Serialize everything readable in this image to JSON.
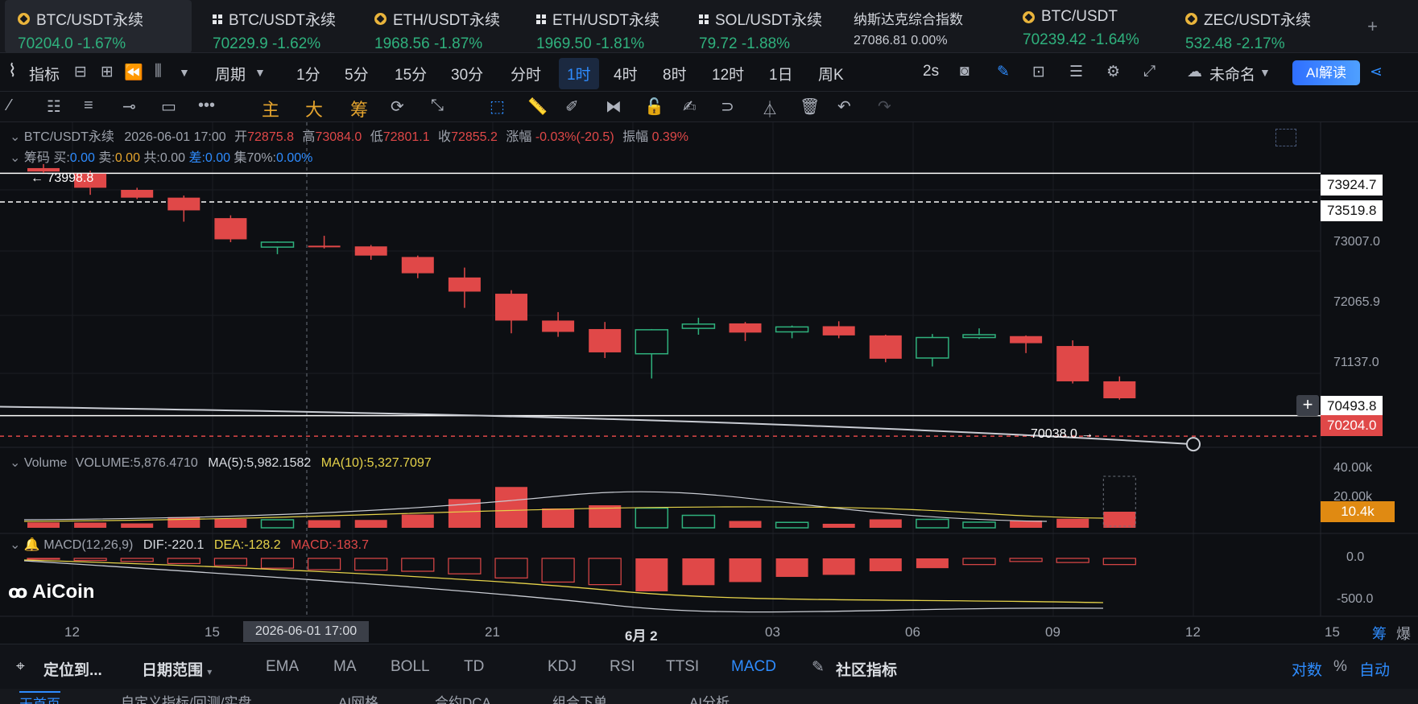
{
  "tabs": [
    {
      "name": "BTC/USDT永续",
      "price": "70204.0",
      "change": "-1.67%",
      "icon": "binance-coin-icon"
    },
    {
      "name": "BTC/USDT永续",
      "price": "70229.9",
      "change": "-1.62%",
      "icon": "okx-grid-icon"
    },
    {
      "name": "ETH/USDT永续",
      "price": "1968.56",
      "change": "-1.87%",
      "icon": "binance-coin-icon"
    },
    {
      "name": "ETH/USDT永续",
      "price": "1969.50",
      "change": "-1.81%",
      "icon": "okx-grid-icon"
    },
    {
      "name": "SOL/USDT永续",
      "price": "79.72",
      "change": "-1.88%",
      "icon": "okx-grid-icon"
    },
    {
      "name": "纳斯达克综合指数",
      "price": "27086.81",
      "change": "0.00%",
      "icon": ""
    },
    {
      "name": "BTC/USDT",
      "price": "70239.42",
      "change": "-1.64%",
      "icon": "binance-coin-icon"
    },
    {
      "name": "ZEC/USDT永续",
      "price": "532.48",
      "change": "-2.17%",
      "icon": "binance-coin-icon"
    }
  ],
  "toolbar": {
    "indicator_label": "指标",
    "period_label": "周期",
    "timeframes": [
      "1分",
      "5分",
      "15分",
      "30分",
      "分时",
      "1时",
      "4时",
      "8时",
      "12时",
      "1日",
      "周K"
    ],
    "active_timeframe": "1时",
    "refresh": "2s",
    "layout_name": "未命名",
    "ai_label": "AI解读"
  },
  "drawing_toolbar": {
    "main": "主",
    "big": "大",
    "chips": "筹"
  },
  "chart_info": {
    "symbol": "BTC/USDT永续",
    "datetime": "2026-06-01 17:00",
    "open_label": "开",
    "open": "72875.8",
    "high_label": "高",
    "high": "73084.0",
    "low_label": "低",
    "low": "72801.1",
    "close_label": "收",
    "close": "72855.2",
    "chg_label": "涨幅",
    "chg": "-0.03%(-20.5)",
    "amp_label": "振幅",
    "amp": "0.39%",
    "chips_label": "筹码",
    "buy_label": "买:",
    "buy": "0.00",
    "sell_label": "卖:",
    "sell": "0.00",
    "total_label": "共:",
    "total": "0.00",
    "diff_label": "差:",
    "diff": "0.00",
    "conc_label": "集70%:",
    "conc": "0.00%"
  },
  "volume_info": {
    "title": "Volume",
    "volume": "VOLUME:5,876.4710",
    "ma5": "MA(5):5,982.1582",
    "ma10": "MA(10):5,327.7097"
  },
  "macd_info": {
    "title": "MACD(12,26,9)",
    "dif": "DIF:-220.1",
    "dea": "DEA:-128.2",
    "macd": "MACD:-183.7"
  },
  "price_axis": {
    "tags": [
      "73924.7",
      "73519.8",
      "70493.8",
      "70204.0"
    ],
    "ticks": [
      "73007.0",
      "72065.9",
      "71137.0"
    ],
    "vol_ticks": [
      "40.00k",
      "20.00k"
    ],
    "vol_tag": "10.4k",
    "macd_ticks": [
      "0.0",
      "-500.0"
    ],
    "high_marker": "73998.8",
    "low_marker": "70038.0"
  },
  "time_axis": {
    "labels": [
      "12",
      "15",
      "21",
      "6月 2",
      "03",
      "06",
      "09",
      "12",
      "15"
    ],
    "crosshair": "2026-06-01 17:00"
  },
  "right_labels": [
    "筹",
    "爆"
  ],
  "watermark": "AiCoin",
  "chart_data": {
    "type": "candlestick",
    "candles": [
      {
        "o": 73998,
        "h": 74055,
        "l": 73930,
        "c": 73950
      },
      {
        "o": 73920,
        "h": 73960,
        "l": 73620,
        "c": 73720
      },
      {
        "o": 73690,
        "h": 73720,
        "l": 73560,
        "c": 73580
      },
      {
        "o": 73580,
        "h": 73610,
        "l": 73240,
        "c": 73400
      },
      {
        "o": 73290,
        "h": 73330,
        "l": 72950,
        "c": 72990
      },
      {
        "o": 72880,
        "h": 72960,
        "l": 72780,
        "c": 72950
      },
      {
        "o": 72900,
        "h": 73040,
        "l": 72860,
        "c": 72880
      },
      {
        "o": 72890,
        "h": 72910,
        "l": 72700,
        "c": 72760
      },
      {
        "o": 72740,
        "h": 72760,
        "l": 72440,
        "c": 72510
      },
      {
        "o": 72450,
        "h": 72590,
        "l": 72020,
        "c": 72250
      },
      {
        "o": 72220,
        "h": 72270,
        "l": 71660,
        "c": 71840
      },
      {
        "o": 71840,
        "h": 71960,
        "l": 71610,
        "c": 71680
      },
      {
        "o": 71720,
        "h": 71820,
        "l": 71310,
        "c": 71390
      },
      {
        "o": 71370,
        "h": 71720,
        "l": 71020,
        "c": 71710
      },
      {
        "o": 71730,
        "h": 71880,
        "l": 71640,
        "c": 71790
      },
      {
        "o": 71800,
        "h": 71820,
        "l": 71550,
        "c": 71670
      },
      {
        "o": 71680,
        "h": 71770,
        "l": 71590,
        "c": 71750
      },
      {
        "o": 71760,
        "h": 71830,
        "l": 71590,
        "c": 71630
      },
      {
        "o": 71630,
        "h": 71640,
        "l": 71250,
        "c": 71300
      },
      {
        "o": 71310,
        "h": 71650,
        "l": 71190,
        "c": 71600
      },
      {
        "o": 71600,
        "h": 71730,
        "l": 71580,
        "c": 71640
      },
      {
        "o": 71620,
        "h": 71630,
        "l": 71380,
        "c": 71520
      },
      {
        "o": 71480,
        "h": 71560,
        "l": 70950,
        "c": 70980
      },
      {
        "o": 70980,
        "h": 71050,
        "l": 70720,
        "c": 70740
      }
    ],
    "volume": [
      1.9,
      1.8,
      1.4,
      4.5,
      3.6,
      3.2,
      3.0,
      3.1,
      5.8,
      13.5,
      19.5,
      8.8,
      10.4,
      9.0,
      5.4,
      2.6,
      1.9,
      1.2,
      3.4,
      3.4,
      2.0,
      2.8,
      3.7,
      7.2
    ],
    "macd_hist": [
      -8,
      -20,
      -30,
      -50,
      -70,
      -95,
      -110,
      -115,
      -125,
      -150,
      -190,
      -230,
      -255,
      -320,
      -260,
      -230,
      -180,
      -160,
      -125,
      -95,
      -60,
      -30,
      -40,
      -60
    ],
    "price_min": 70000,
    "price_max": 74100,
    "ma_price": 70493.8,
    "last_price": 70204.0,
    "level_high": 73924.7,
    "level_dash": 73519.8
  }
}
